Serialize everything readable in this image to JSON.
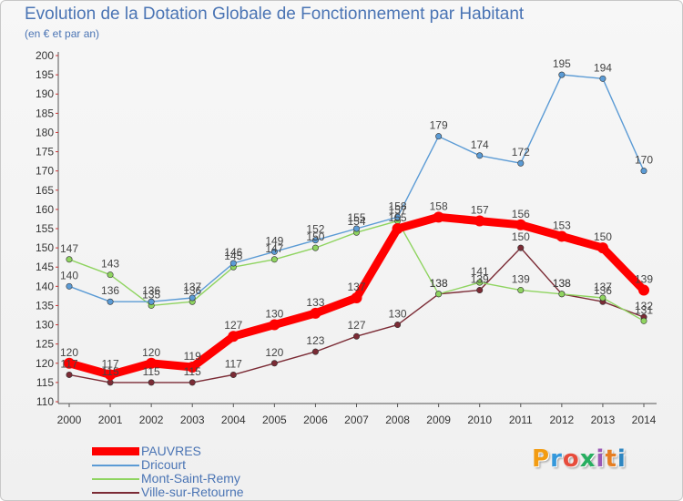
{
  "chart_data": {
    "type": "line",
    "title": "Evolution de la Dotation Globale de Fonctionnement par Habitant",
    "subtitle": "(en € et par an)",
    "xlabel": "",
    "ylabel": "",
    "ylim": [
      110,
      200
    ],
    "y_ticks": [
      110,
      115,
      120,
      125,
      130,
      135,
      140,
      145,
      150,
      155,
      160,
      165,
      170,
      175,
      180,
      185,
      190,
      195,
      200
    ],
    "categories": [
      "2000",
      "2001",
      "2002",
      "2003",
      "2004",
      "2005",
      "2006",
      "2007",
      "2008",
      "2009",
      "2010",
      "2011",
      "2012",
      "2013",
      "2014"
    ],
    "series": [
      {
        "name": "PAUVRES",
        "color": "#ff0000",
        "values": [
          120,
          117,
          120,
          119,
          127,
          130,
          133,
          137,
          155,
          158,
          157,
          156,
          153,
          150,
          139
        ]
      },
      {
        "name": "Dricourt",
        "color": "#5b9bd5",
        "values": [
          140,
          136,
          136,
          137,
          146,
          149,
          152,
          155,
          158,
          179,
          174,
          172,
          195,
          194,
          170
        ]
      },
      {
        "name": "Mont-Saint-Remy",
        "color": "#8fd460",
        "values": [
          147,
          143,
          135,
          136,
          145,
          147,
          150,
          154,
          157,
          138,
          141,
          139,
          138,
          137,
          131
        ]
      },
      {
        "name": "Ville-sur-Retourne",
        "color": "#7b2b35",
        "values": [
          117,
          115,
          115,
          115,
          117,
          120,
          123,
          127,
          130,
          138,
          139,
          150,
          138,
          136,
          132
        ]
      }
    ],
    "grid": false,
    "legend_position": "bottom-left"
  },
  "logo": {
    "letters": [
      "P",
      "r",
      "o",
      "x",
      "i",
      "t",
      "i"
    ]
  }
}
